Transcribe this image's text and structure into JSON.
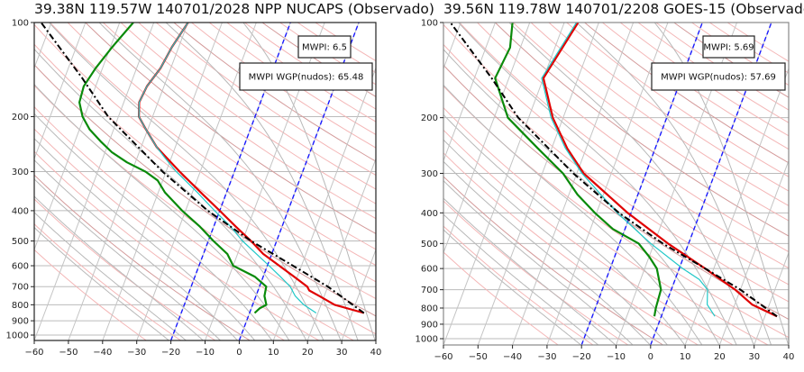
{
  "chart_data": [
    {
      "type": "line",
      "subtype": "skew-t log-p",
      "title": "39.38N 119.57W 140701/2028 NPP NUCAPS (Observado)",
      "xlabel": "",
      "ylabel": "",
      "xlim": [
        -60,
        40
      ],
      "ylim": [
        1000,
        100
      ],
      "x_ticks": [
        "−60",
        "−50",
        "−40",
        "−30",
        "−20",
        "−10",
        "0",
        "10",
        "20",
        "30",
        "40"
      ],
      "x_tick_values": [
        -60,
        -50,
        -40,
        -30,
        -20,
        -10,
        0,
        10,
        20,
        30,
        40
      ],
      "y_ticks": [
        "100",
        "200",
        "300",
        "400",
        "500",
        "600",
        "700",
        "800",
        "900",
        "1000"
      ],
      "y_tick_values": [
        100,
        200,
        300,
        400,
        500,
        600,
        700,
        800,
        900,
        1000
      ],
      "annotations": [
        {
          "label": "MWPI: 6.5",
          "position": "top-right"
        },
        {
          "label": "MWPI WGP(nudos): 65.48",
          "position": "top-right"
        }
      ],
      "series": [
        {
          "name": "temperature",
          "color": "#e00000",
          "p": [
            850,
            800,
            750,
            720,
            700,
            650,
            600,
            550,
            500,
            450,
            400,
            350,
            300,
            270,
            250,
            220,
            200,
            180,
            160,
            140,
            120,
            100
          ],
          "t": [
            33.5,
            24,
            18.5,
            15,
            14,
            9,
            3.5,
            -2.5,
            -7.5,
            -13.5,
            -20,
            -27.5,
            -36,
            -41.5,
            -45.5,
            -50.5,
            -54,
            -55.5,
            -55,
            -53,
            -52,
            -50
          ]
        },
        {
          "name": "virtual-temperature",
          "color": "#20c8c8",
          "p": [
            850,
            800,
            750,
            700,
            650,
            600,
            550,
            500,
            450,
            400,
            350,
            300,
            270,
            250,
            220,
            200,
            180,
            160,
            140,
            120,
            100
          ],
          "t": [
            19.5,
            15,
            11.5,
            9,
            5,
            0.5,
            -4.5,
            -10,
            -15,
            -21.5,
            -28.5,
            -37,
            -42,
            -45.5,
            -50.5,
            -54,
            -55.5,
            -55,
            -53,
            -52,
            -50
          ]
        },
        {
          "name": "dewpoint",
          "color": "#0a8a0a",
          "p": [
            850,
            820,
            800,
            750,
            700,
            650,
            600,
            550,
            500,
            450,
            400,
            350,
            320,
            300,
            280,
            260,
            240,
            220,
            200,
            180,
            160,
            140,
            120,
            100
          ],
          "t": [
            1.5,
            2.5,
            4,
            2.5,
            2,
            -2.5,
            -10,
            -13,
            -18.5,
            -24,
            -31,
            -38,
            -41.5,
            -46,
            -52.5,
            -58,
            -62.5,
            -67,
            -70.5,
            -73,
            -73.5,
            -72,
            -69.5,
            -66
          ]
        },
        {
          "name": "parcel",
          "color": "#000000",
          "style": "dash-dot",
          "p": [
            850,
            700,
            600,
            500,
            400,
            300,
            200,
            150,
            100
          ],
          "t": [
            33.5,
            20,
            7.5,
            -7.5,
            -23.5,
            -41,
            -63,
            -75,
            -93
          ]
        }
      ]
    },
    {
      "type": "line",
      "subtype": "skew-t log-p",
      "title": "39.56N 119.78W 140701/2208 GOES-15 (Observado)",
      "xlabel": "",
      "ylabel": "",
      "xlim": [
        -60,
        40
      ],
      "ylim": [
        1000,
        100
      ],
      "x_ticks": [
        "−60",
        "−50",
        "−40",
        "−30",
        "−20",
        "−10",
        "0",
        "10",
        "20",
        "30",
        "40"
      ],
      "x_tick_values": [
        -60,
        -50,
        -40,
        -30,
        -20,
        -10,
        0,
        10,
        20,
        30,
        40
      ],
      "y_ticks": [
        "100",
        "200",
        "300",
        "400",
        "500",
        "600",
        "700",
        "800",
        "900",
        "1000"
      ],
      "y_tick_values": [
        100,
        200,
        300,
        400,
        500,
        600,
        700,
        800,
        900,
        1000
      ],
      "annotations": [
        {
          "label": "MWPI: 5.69",
          "position": "top-right"
        },
        {
          "label": "MWPI WGP(nudos): 57.69",
          "position": "top-right"
        }
      ],
      "series": [
        {
          "name": "temperature",
          "color": "#e00000",
          "p": [
            850,
            780,
            700,
            600,
            500,
            400,
            300,
            250,
            200,
            150,
            100
          ],
          "t": [
            33.5,
            25,
            18.5,
            7.5,
            -6,
            -21,
            -38,
            -45.5,
            -53,
            -60,
            -56
          ]
        },
        {
          "name": "virtual-temperature",
          "color": "#20c8c8",
          "p": [
            850,
            780,
            700,
            650,
            600,
            500,
            400,
            300,
            250,
            200,
            150,
            100
          ],
          "t": [
            15.5,
            12,
            10.5,
            7,
            1,
            -11,
            -24,
            -38.5,
            -46,
            -53.5,
            -60.5,
            -56.5
          ]
        },
        {
          "name": "dewpoint",
          "color": "#0a8a0a",
          "p": [
            850,
            800,
            700,
            600,
            550,
            500,
            450,
            400,
            350,
            300,
            250,
            200,
            150,
            120,
            100
          ],
          "t": [
            -2,
            -2.5,
            -3,
            -6.5,
            -10,
            -14.5,
            -23.5,
            -30.5,
            -37.5,
            -44,
            -54,
            -66,
            -74,
            -73,
            -75
          ]
        },
        {
          "name": "parcel",
          "color": "#000000",
          "style": "dash-dot",
          "p": [
            850,
            700,
            600,
            500,
            400,
            300,
            200,
            150,
            100
          ],
          "t": [
            33.5,
            20,
            7.5,
            -7.5,
            -23.5,
            -41,
            -63,
            -75,
            -93
          ]
        }
      ]
    }
  ]
}
